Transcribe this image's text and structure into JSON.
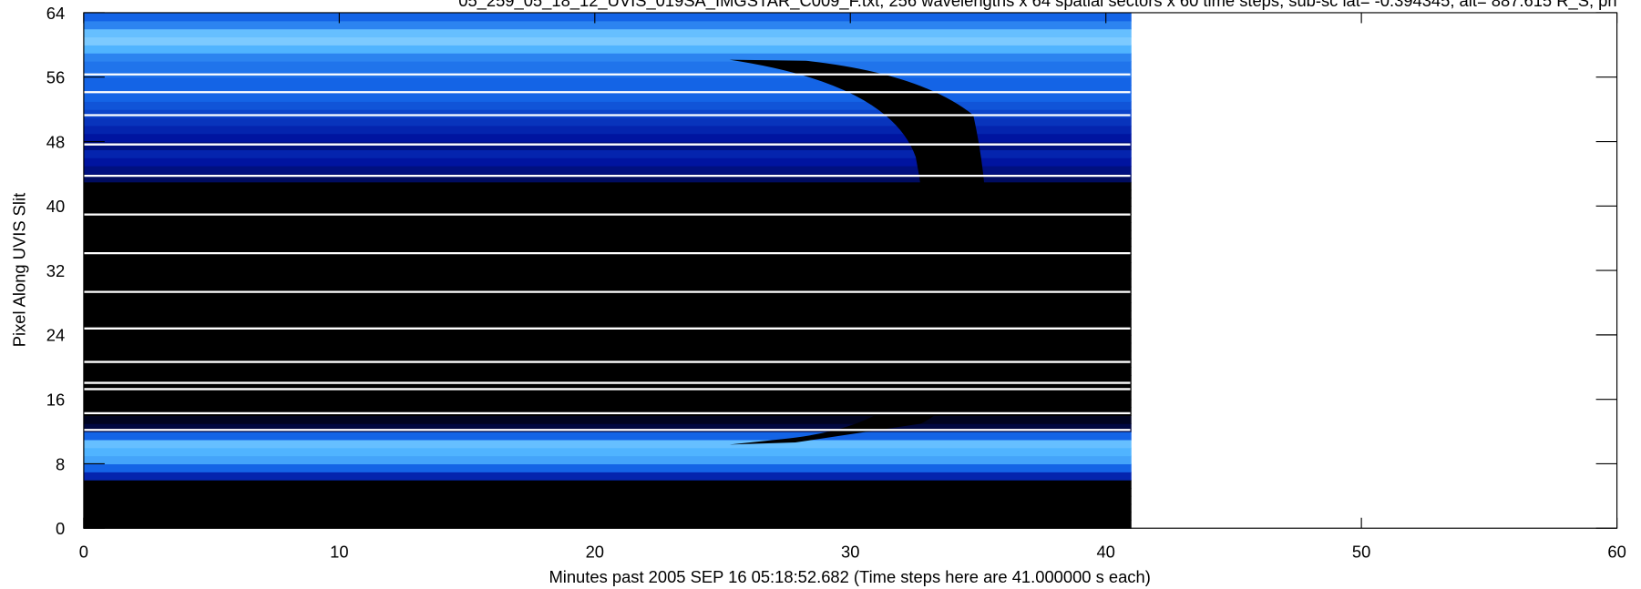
{
  "chart_data": {
    "type": "heatmap",
    "title": "05_259_05_18_12_UVIS_019SA_IMGSTAR_C009_F.txt; 256 wavelengths x 64 spatial sectors x 60 time steps, sub-sc lat= -0.394345, alt= 887.615 R_S, ph",
    "x_label": "Minutes past 2005 SEP 16 05:18:52.682 (Time steps here are 41.000000 s each)",
    "y_label": "Pixel Along UVIS Slit",
    "xlim": [
      0,
      60
    ],
    "xticks": [
      0,
      10,
      20,
      30,
      40,
      50,
      60
    ],
    "ylim": [
      0,
      64
    ],
    "yticks": [
      0,
      8,
      16,
      24,
      32,
      40,
      48,
      56,
      64
    ],
    "time_extent": [
      0,
      41
    ],
    "row_intensity": [
      0,
      0,
      0,
      0,
      0,
      0,
      0.3,
      0.5,
      0.7,
      0.75,
      0.8,
      0.5,
      0.1,
      0.05,
      0,
      0,
      0,
      0,
      0,
      0,
      0,
      0,
      0,
      0,
      0,
      0,
      0,
      0,
      0,
      0,
      0,
      0,
      0,
      0,
      0,
      0,
      0,
      0,
      0,
      0,
      0,
      0,
      0,
      0.15,
      0.2,
      0.25,
      0.3,
      0.2,
      0.25,
      0.3,
      0.35,
      0.4,
      0.45,
      0.5,
      0.5,
      0.5,
      0.55,
      0.55,
      0.6,
      0.75,
      0.85,
      0.8,
      0.6,
      0.5
    ]
  }
}
